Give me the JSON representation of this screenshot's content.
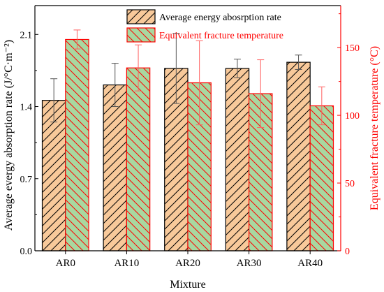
{
  "chart_data": {
    "type": "bar",
    "xlabel": "Mixture",
    "ylabel_left": "Average evergy absorption rate (J/°C·m⁻²)",
    "ylabel_right": "Equivalent fracture temperature (°C)",
    "categories": [
      "AR0",
      "AR10",
      "AR20",
      "AR30",
      "AR40"
    ],
    "series": [
      {
        "name": "Average energy abosrption rate",
        "axis": "left",
        "values": [
          1.46,
          1.61,
          1.77,
          1.77,
          1.83
        ],
        "error": [
          0.21,
          0.21,
          0.34,
          0.09,
          0.07
        ],
        "fill": "#f8c99a",
        "hatch": "#000000",
        "edge": "#000000",
        "error_color": "#555555"
      },
      {
        "name": "Equivalent fracture temperature",
        "axis": "right",
        "values": [
          156,
          135,
          124,
          116,
          107
        ],
        "error": [
          7,
          17,
          31,
          25,
          14
        ],
        "fill": "#a8d8a0",
        "hatch": "#ff0000",
        "edge": "#ff0000",
        "error_color": "#ff6060"
      }
    ],
    "ylim_left": [
      0,
      2.38
    ],
    "yticks_left": [
      "0.0",
      "0.7",
      "1.4",
      "2.1"
    ],
    "ylim_right": [
      0,
      181
    ],
    "yticks_right": [
      "0",
      "50",
      "100",
      "150"
    ],
    "right_axis_color": "#ff0000",
    "grid": false,
    "legend_position": "top-right"
  }
}
